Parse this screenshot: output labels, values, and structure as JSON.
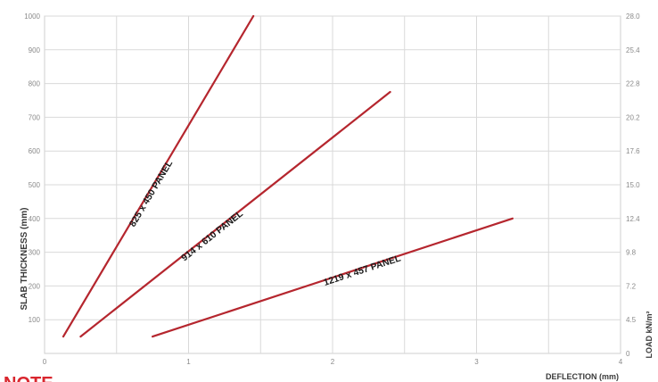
{
  "chart_data": {
    "type": "line",
    "xlabel": "DEFLECTION (mm)",
    "ylabel": "SLAB THICKNESS (mm)",
    "y2label": "LOAD kN/m²",
    "xlim": [
      0,
      4
    ],
    "ylim": [
      0,
      1000
    ],
    "x_ticks": [
      "0",
      "1",
      "2",
      "3",
      "4"
    ],
    "y_ticks": [
      "100",
      "200",
      "300",
      "400",
      "500",
      "600",
      "700",
      "800",
      "900",
      "1000"
    ],
    "y2_ticks": [
      "0",
      "4.5",
      "7.2",
      "9.8",
      "12.4",
      "15.0",
      "17.6",
      "20.2",
      "22.8",
      "25.4",
      "28.0"
    ],
    "grid": true,
    "series": [
      {
        "name": "825 x 450 PANEL",
        "x": [
          0.13,
          1.45
        ],
        "y": [
          50,
          1000
        ]
      },
      {
        "name": "914 x 610 PANEL",
        "x": [
          0.25,
          2.4
        ],
        "y": [
          50,
          775
        ]
      },
      {
        "name": "1219 x 457 PANEL",
        "x": [
          0.75,
          3.25
        ],
        "y": [
          50,
          400
        ]
      }
    ],
    "line_color": "#b5262e"
  },
  "note": {
    "text": "NOTE",
    "color": "#d9262e"
  }
}
